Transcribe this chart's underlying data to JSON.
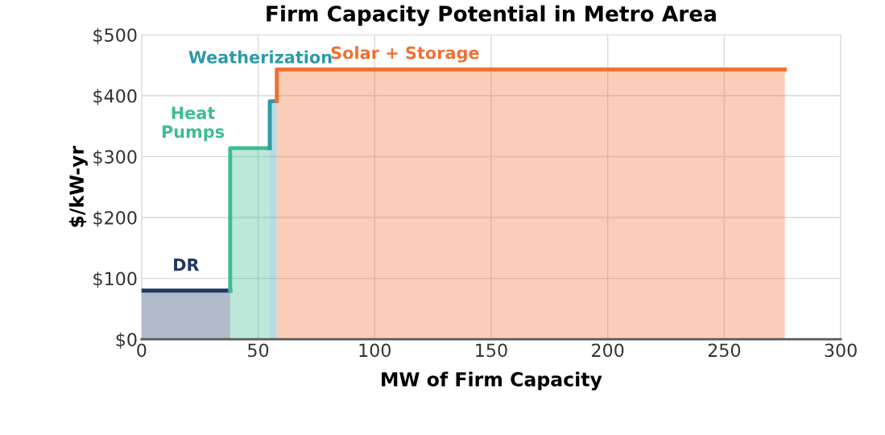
{
  "chart_data": {
    "type": "area",
    "title": "Firm Capacity Potential in Metro Area",
    "xlabel": "MW of Firm Capacity",
    "ylabel": "$/kW-yr",
    "series": [
      {
        "name": "DR",
        "color": "#203864",
        "x": [
          0,
          38
        ],
        "values": [
          80,
          80
        ]
      },
      {
        "name": "Heat\nPumps",
        "color": "#3dbd92",
        "x": [
          38,
          38,
          55
        ],
        "values": [
          80,
          314,
          314
        ]
      },
      {
        "name": "Weatherization",
        "color": "#2e9aa8",
        "x": [
          55,
          55,
          58
        ],
        "values": [
          314,
          391,
          391
        ]
      },
      {
        "name": "Solar + Storage",
        "color": "#f07033",
        "x": [
          58,
          58,
          276
        ],
        "values": [
          391,
          443,
          443
        ]
      }
    ],
    "xlim": [
      0,
      300
    ],
    "xticks": [
      0,
      50,
      100,
      150,
      200,
      250,
      300
    ],
    "ylim": [
      0,
      500
    ],
    "yticks": [
      {
        "value": 0,
        "label": "$0"
      },
      {
        "value": 100,
        "label": "$100"
      },
      {
        "value": 200,
        "label": "$200"
      },
      {
        "value": 300,
        "label": "$300"
      },
      {
        "value": 400,
        "label": "$400"
      },
      {
        "value": 500,
        "label": "$500"
      }
    ],
    "grid": true
  }
}
